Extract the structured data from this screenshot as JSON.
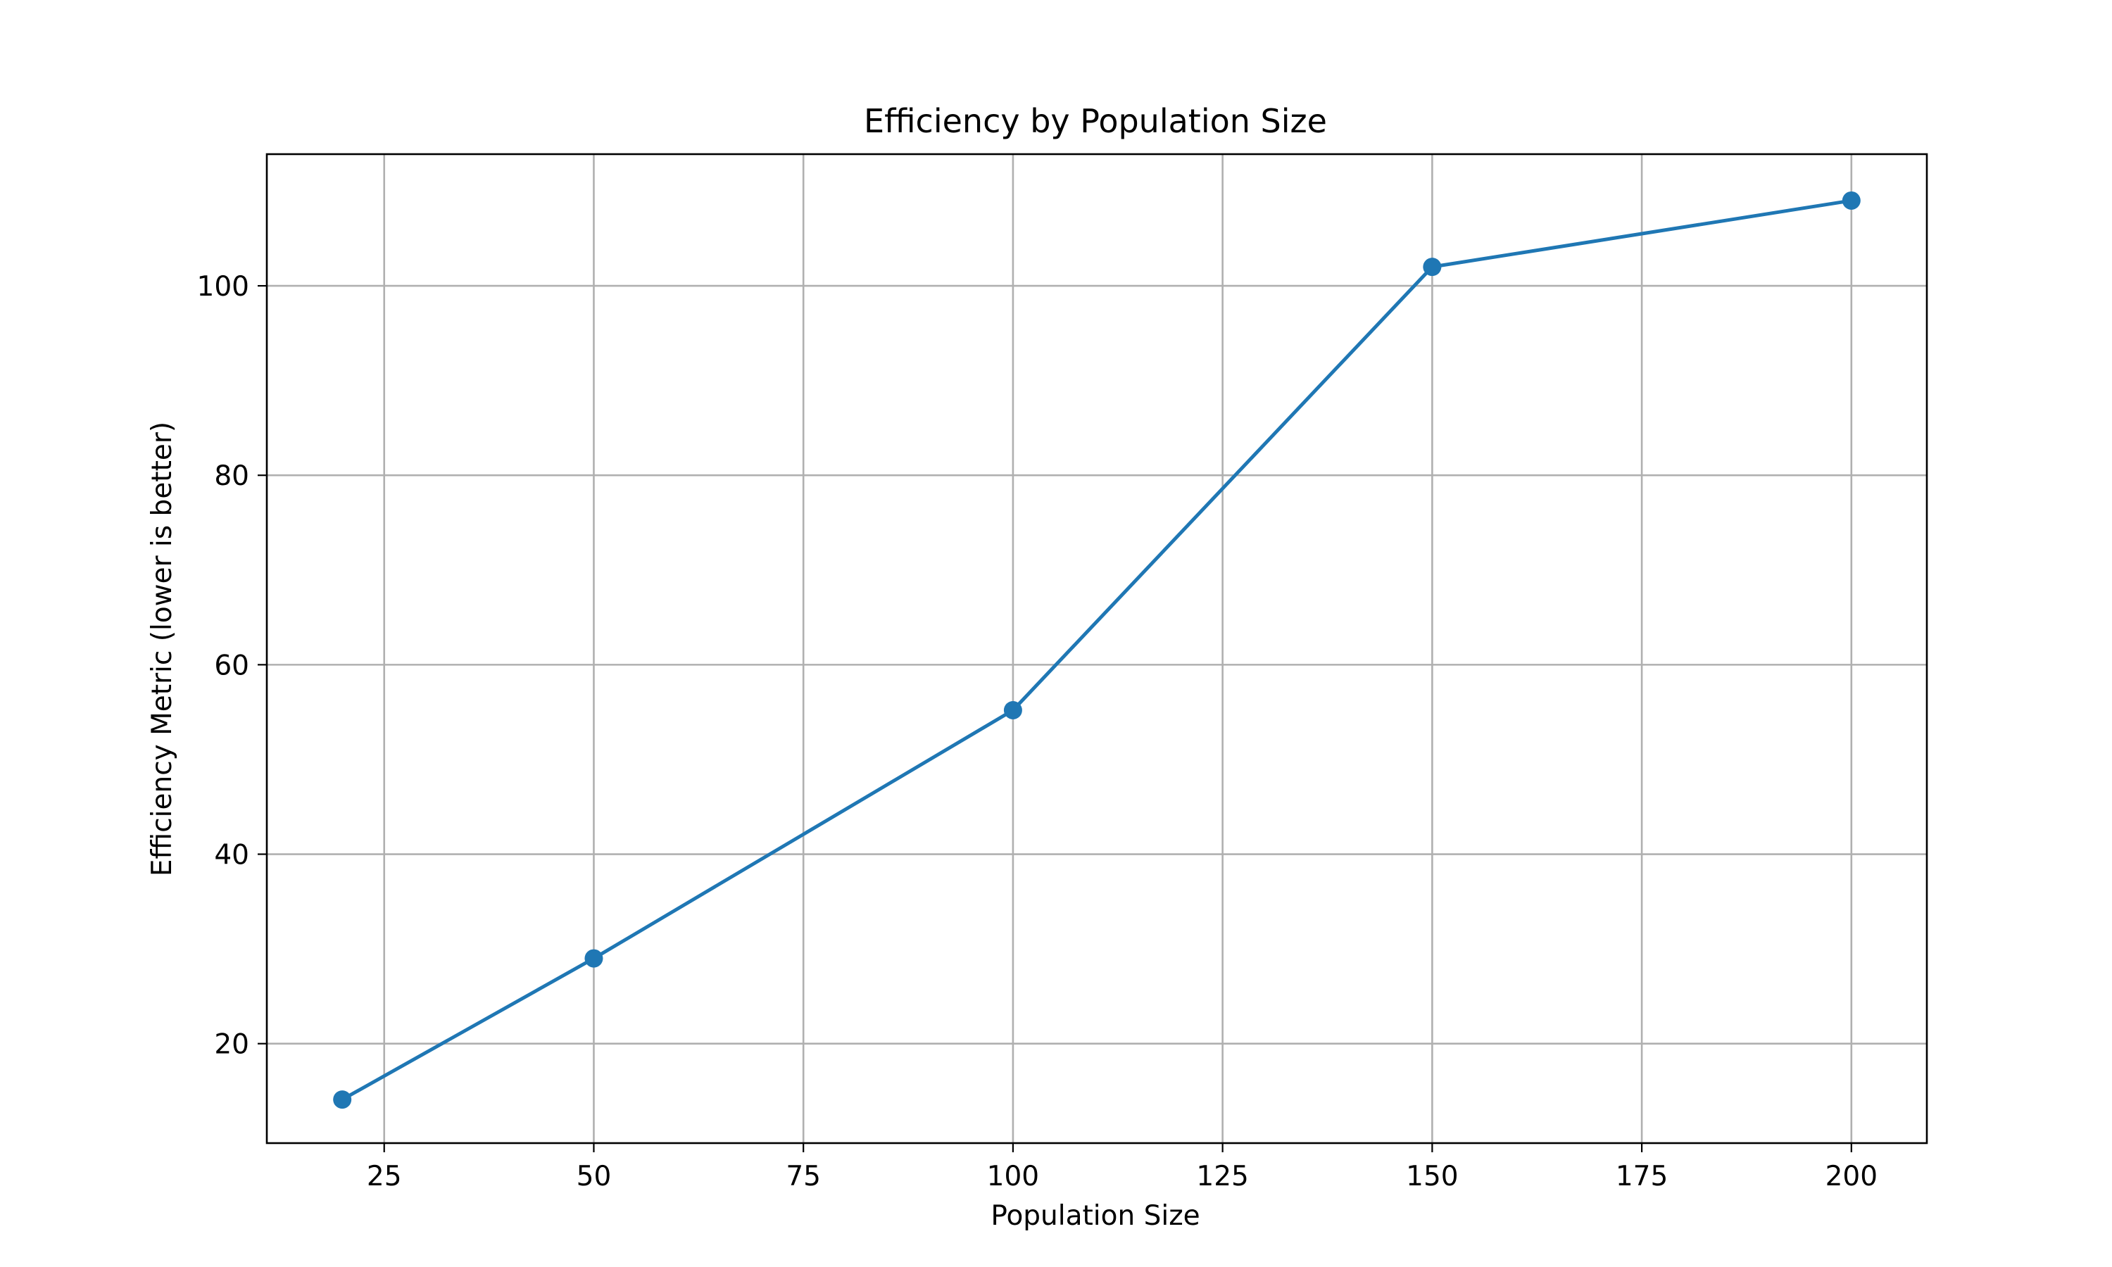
{
  "chart_data": {
    "type": "line",
    "title": "Efficiency by Population Size",
    "xlabel": "Population Size",
    "ylabel": "Efficiency Metric (lower is better)",
    "x": [
      20,
      50,
      100,
      150,
      200
    ],
    "series": [
      {
        "values": [
          14.1,
          29,
          55.2,
          102,
          109
        ]
      }
    ],
    "xlim": [
      11,
      209
    ],
    "ylim": [
      9.5,
      113.9
    ],
    "xticks": [
      25,
      50,
      75,
      100,
      125,
      150,
      175,
      200
    ],
    "yticks": [
      20,
      40,
      60,
      80,
      100
    ],
    "grid": true,
    "line_color": "#1f77b4",
    "marker": "circle"
  }
}
